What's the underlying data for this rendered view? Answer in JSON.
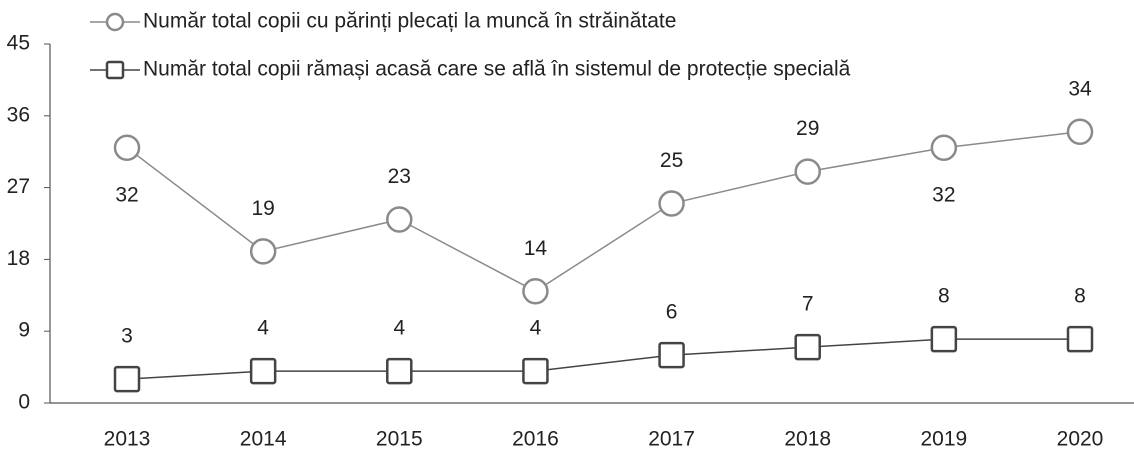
{
  "chart_data": {
    "type": "line",
    "categories": [
      "2013",
      "2014",
      "2015",
      "2016",
      "2017",
      "2018",
      "2019",
      "2020"
    ],
    "series": [
      {
        "name": "Număr total copii cu părinți plecați la muncă în străinătate",
        "color": "#8a8a8a",
        "marker": "circle",
        "values": [
          32,
          19,
          23,
          14,
          25,
          29,
          32,
          34
        ]
      },
      {
        "name": "Număr total copii rămași acasă care se află în sistemul de protecție specială",
        "color": "#444444",
        "marker": "square",
        "values": [
          3,
          4,
          4,
          4,
          6,
          7,
          8,
          8
        ]
      }
    ],
    "ylim": [
      0,
      45
    ],
    "yticks": [
      0,
      9,
      18,
      27,
      36,
      45
    ],
    "grid": false
  }
}
